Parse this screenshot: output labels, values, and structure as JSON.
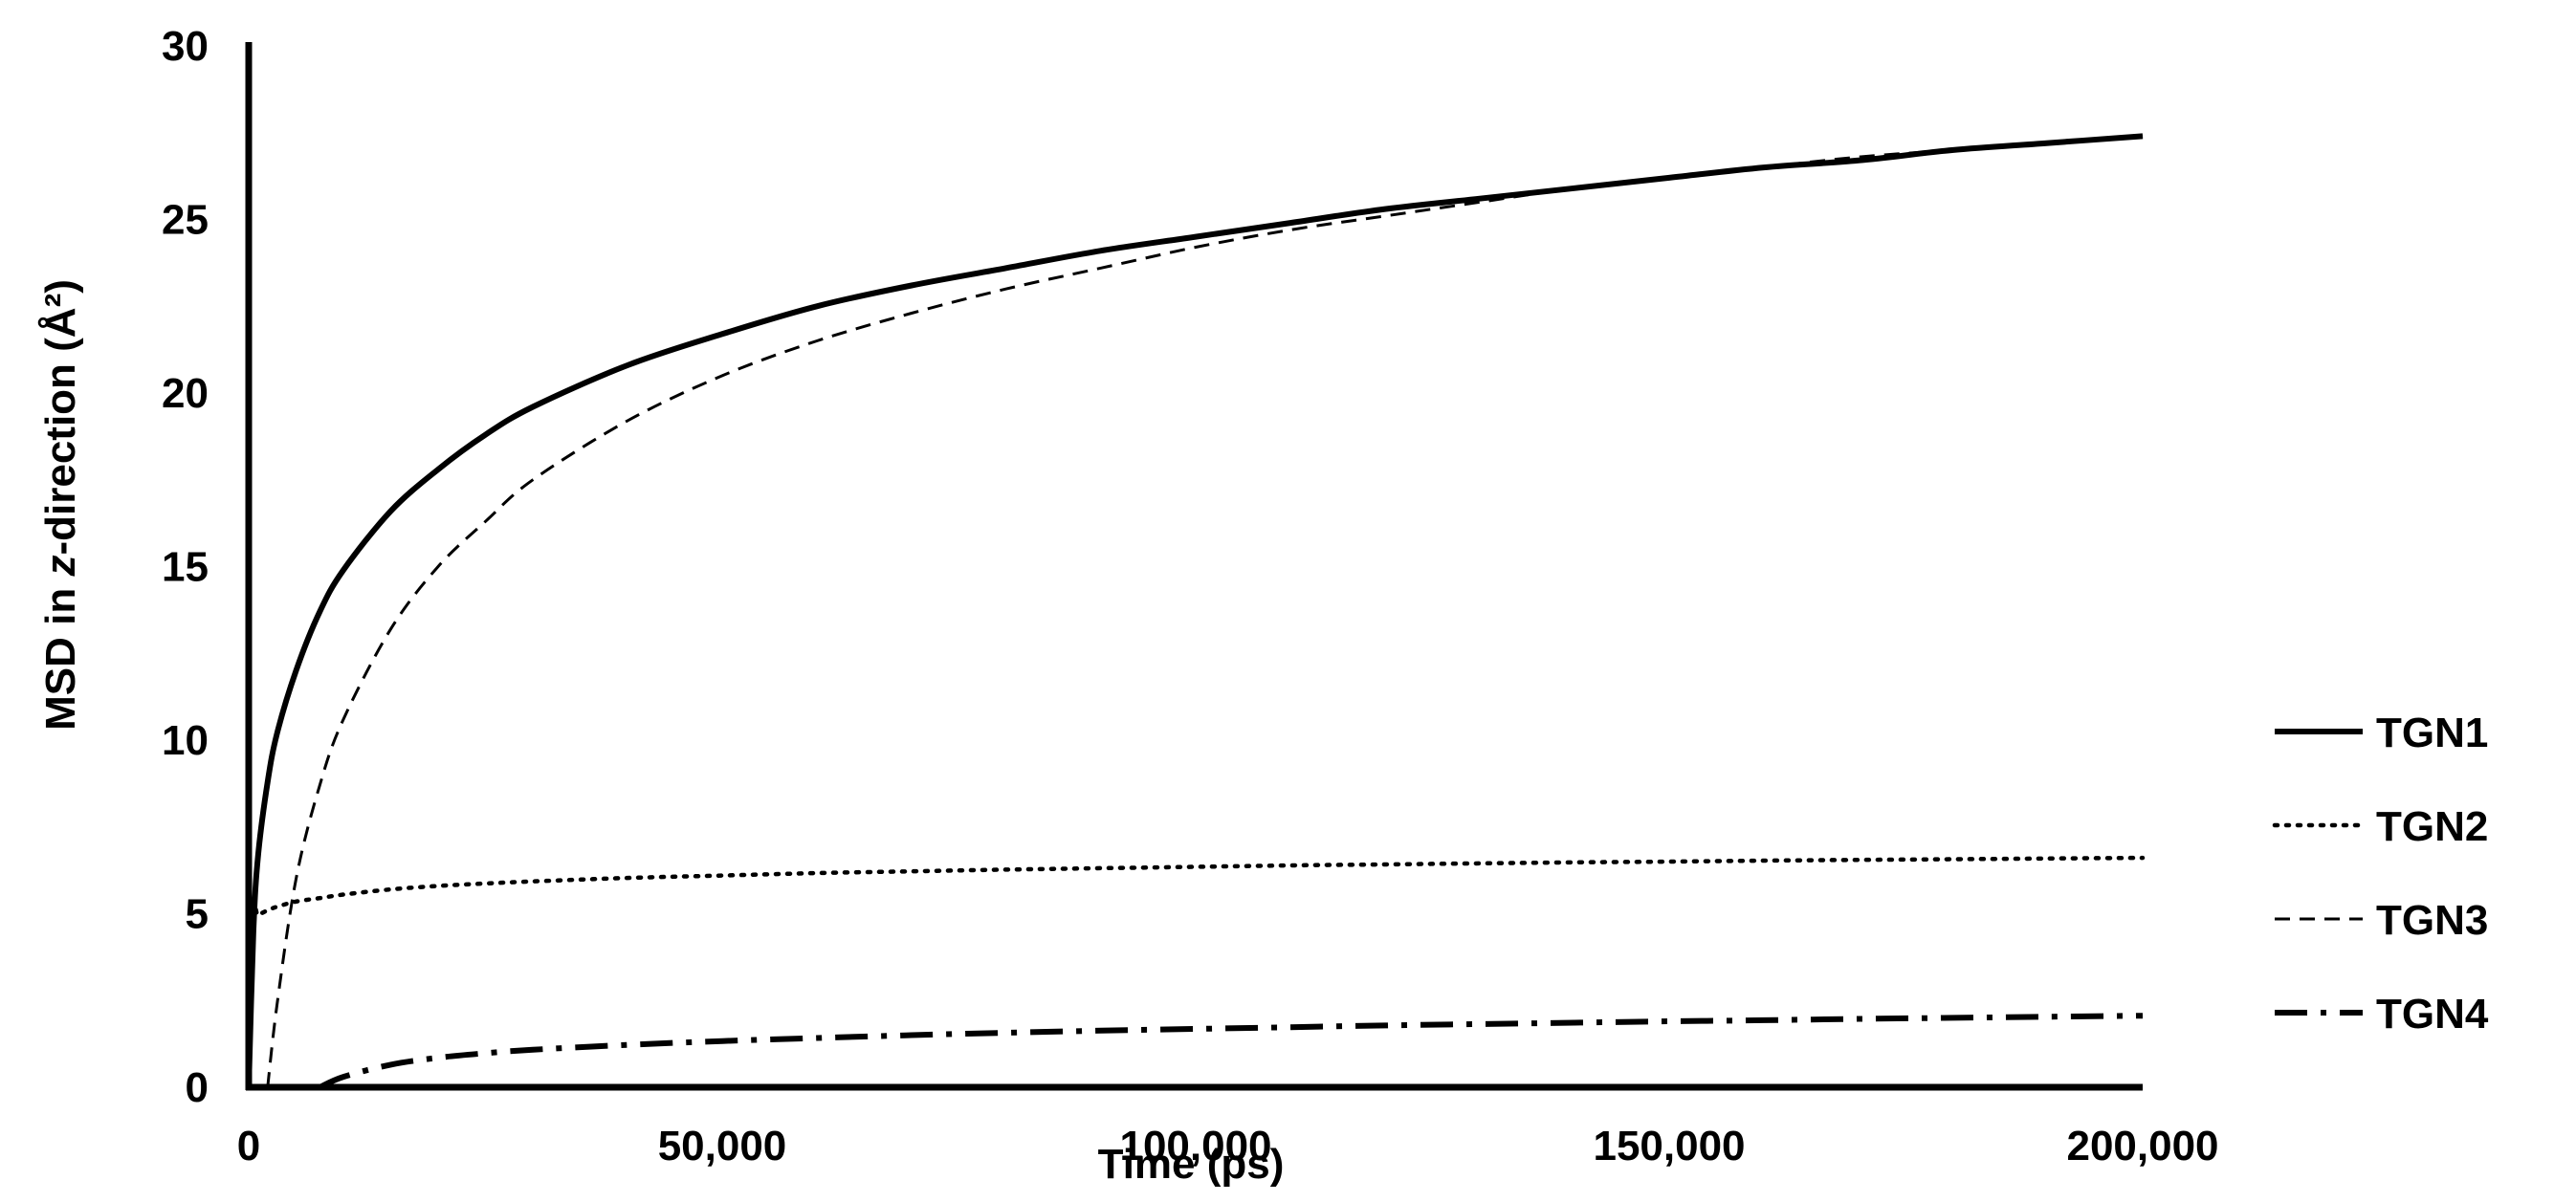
{
  "chart_data": {
    "type": "line",
    "xlabel": "Time (ps)",
    "ylabel_parts": [
      "MSD in ",
      "z",
      "-direction (Å²)"
    ],
    "xlim": [
      0,
      200000
    ],
    "ylim": [
      0,
      30
    ],
    "x_ticks": [
      0,
      50000,
      100000,
      150000,
      200000
    ],
    "x_tick_labels": [
      "0",
      "50,000",
      "100,000",
      "150,000",
      "200,000"
    ],
    "y_ticks": [
      0,
      5,
      10,
      15,
      20,
      25,
      30
    ],
    "y_tick_labels": [
      "0",
      "5",
      "10",
      "15",
      "20",
      "25",
      "30"
    ],
    "grid": false,
    "legend_position": "right",
    "x": [
      0,
      500,
      1000,
      2000,
      3000,
      5000,
      7500,
      10000,
      15000,
      20000,
      25000,
      30000,
      40000,
      50000,
      60000,
      70000,
      80000,
      90000,
      100000,
      110000,
      120000,
      130000,
      140000,
      150000,
      160000,
      170000,
      180000,
      190000,
      200000
    ],
    "series": [
      {
        "name": "TGN1",
        "style": "solid",
        "values": [
          0,
          4.5,
          6.7,
          8.8,
          10.2,
          12.0,
          13.7,
          14.9,
          16.6,
          17.8,
          18.8,
          19.6,
          20.8,
          21.7,
          22.5,
          23.1,
          23.6,
          24.1,
          24.5,
          24.9,
          25.3,
          25.6,
          25.9,
          26.2,
          26.5,
          26.7,
          27.0,
          27.2,
          27.4
        ]
      },
      {
        "name": "TGN2",
        "style": "dotted",
        "values": [
          0,
          4.8,
          4.95,
          5.1,
          5.2,
          5.35,
          5.45,
          5.55,
          5.7,
          5.8,
          5.87,
          5.93,
          6.03,
          6.1,
          6.17,
          6.22,
          6.27,
          6.31,
          6.35,
          6.39,
          6.42,
          6.45,
          6.48,
          6.5,
          6.53,
          6.55,
          6.57,
          6.59,
          6.61
        ]
      },
      {
        "name": "TGN3",
        "style": "dashed",
        "values": [
          null,
          null,
          null,
          0,
          2.4,
          6.0,
          8.7,
          10.6,
          13.2,
          15.0,
          16.3,
          17.5,
          19.2,
          20.5,
          21.5,
          22.3,
          23.0,
          23.6,
          24.2,
          24.7,
          25.1,
          25.5,
          25.9,
          26.2,
          26.5,
          26.8,
          27.0,
          27.2,
          27.4
        ]
      },
      {
        "name": "TGN4",
        "style": "dash-dot",
        "values": [
          null,
          null,
          null,
          null,
          null,
          null,
          0,
          0.3,
          0.65,
          0.85,
          0.98,
          1.08,
          1.22,
          1.33,
          1.42,
          1.5,
          1.57,
          1.63,
          1.68,
          1.73,
          1.78,
          1.82,
          1.86,
          1.9,
          1.93,
          1.97,
          2.0,
          2.03,
          2.06
        ]
      }
    ]
  }
}
